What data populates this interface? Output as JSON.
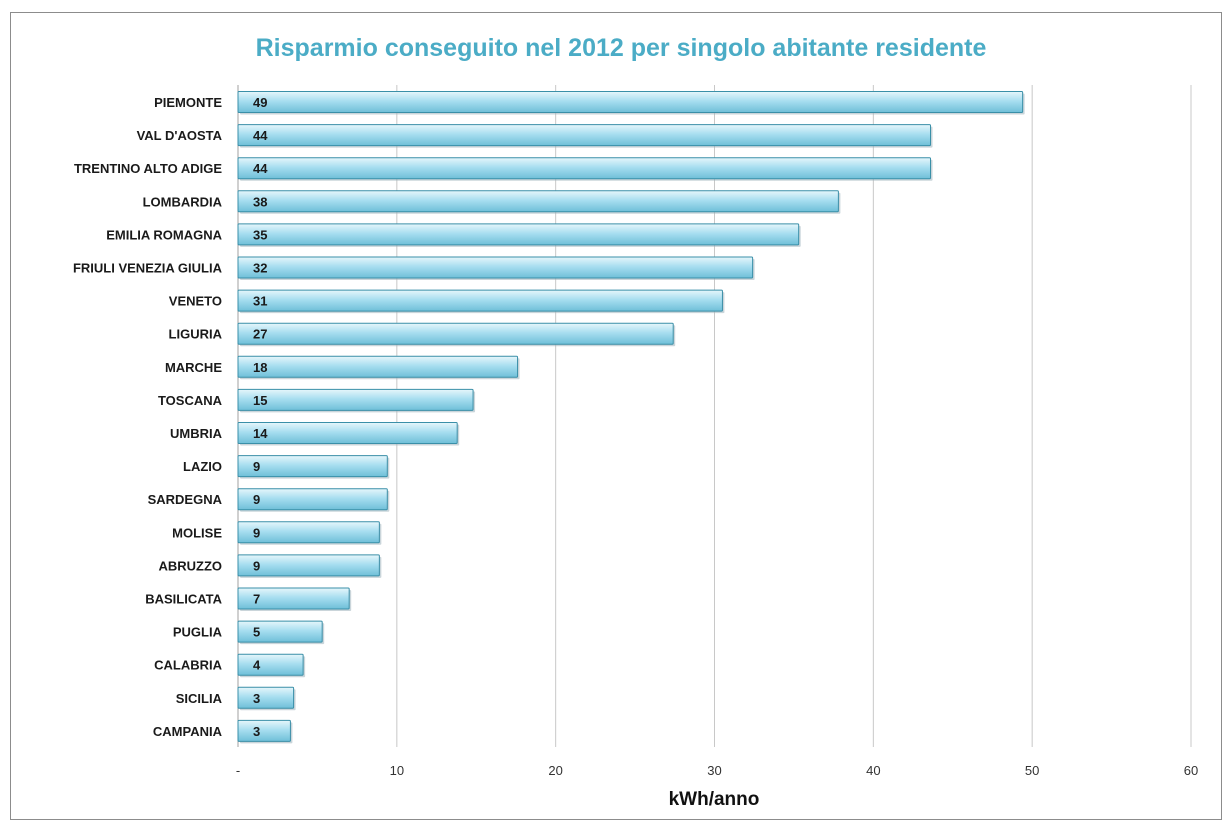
{
  "chart_data": {
    "type": "bar",
    "orientation": "horizontal",
    "title": "Risparmio conseguito nel 2012 per singolo abitante residente",
    "xlabel": "kWh/anno",
    "ylabel": "",
    "xlim": [
      0,
      60
    ],
    "grid": true,
    "legend": "none",
    "bar_color": "#8fd3e6",
    "bar_edge_color": "#3a8fa8",
    "title_color": "#4bacc6",
    "ticks": [
      {
        "value": 0,
        "label": "-"
      },
      {
        "value": 10,
        "label": "10"
      },
      {
        "value": 20,
        "label": "20"
      },
      {
        "value": 30,
        "label": "30"
      },
      {
        "value": 40,
        "label": "40"
      },
      {
        "value": 50,
        "label": "50"
      },
      {
        "value": 60,
        "label": "60"
      }
    ],
    "categories": [
      "PIEMONTE",
      "VAL D'AOSTA",
      "TRENTINO ALTO ADIGE",
      "LOMBARDIA",
      "EMILIA ROMAGNA",
      "FRIULI VENEZIA GIULIA",
      "VENETO",
      "LIGURIA",
      "MARCHE",
      "TOSCANA",
      "UMBRIA",
      "LAZIO",
      "SARDEGNA",
      "MOLISE",
      "ABRUZZO",
      "BASILICATA",
      "PUGLIA",
      "CALABRIA",
      "SICILIA",
      "CAMPANIA"
    ],
    "values": [
      49.4,
      43.6,
      43.6,
      37.8,
      35.3,
      32.4,
      30.5,
      27.4,
      17.6,
      14.8,
      13.8,
      9.4,
      9.4,
      8.9,
      8.9,
      7.0,
      5.3,
      4.1,
      3.5,
      3.3
    ],
    "data_labels": [
      "49",
      "44",
      "44",
      "38",
      "35",
      "32",
      "31",
      "27",
      "18",
      "15",
      "14",
      "9",
      "9",
      "9",
      "9",
      "7",
      "5",
      "4",
      "3",
      "3"
    ]
  }
}
